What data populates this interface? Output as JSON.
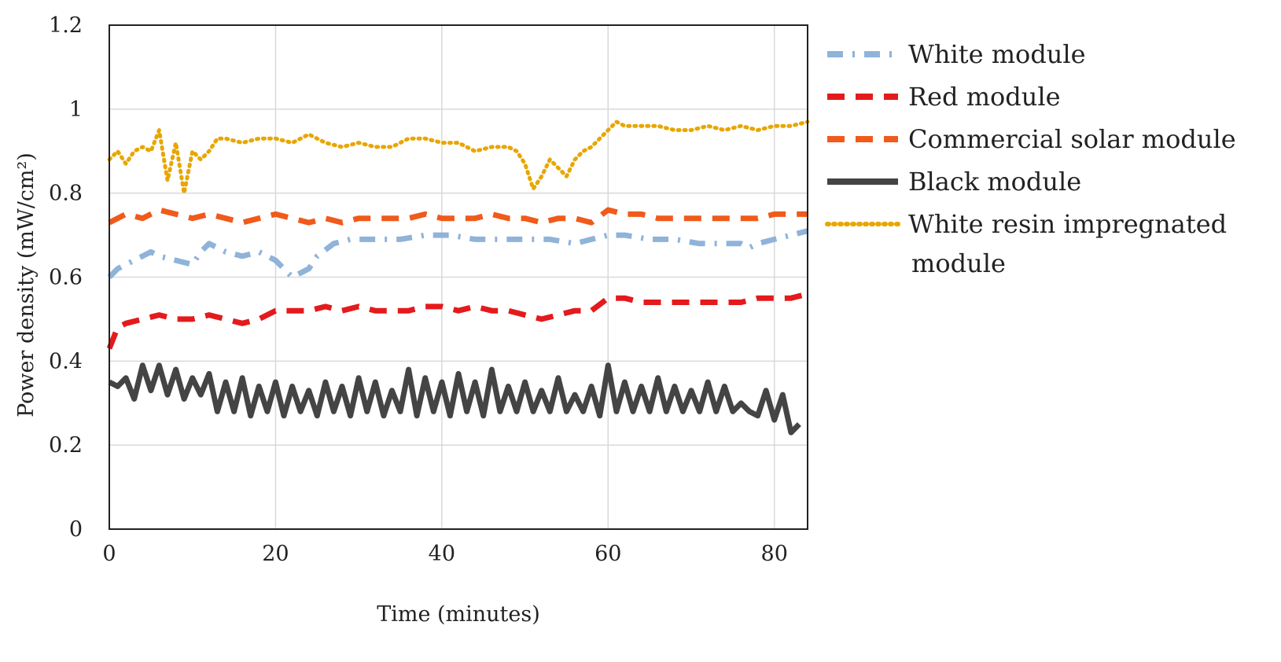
{
  "chart_data": {
    "type": "line",
    "title": "",
    "xlabel": "Time (minutes)",
    "ylabel": "Power density (mW/cm²)",
    "xlim": [
      0,
      84
    ],
    "ylim": [
      0,
      1.2
    ],
    "x_ticks": [
      0,
      20,
      40,
      60,
      80
    ],
    "y_ticks": [
      0,
      0.2,
      0.4,
      0.6,
      0.8,
      1,
      1.2
    ],
    "x_tick_labels": [
      "0",
      "20",
      "40",
      "60",
      "80"
    ],
    "y_tick_labels": [
      "0",
      "0.2",
      "0.4",
      "0.6",
      "0.8",
      "1",
      "1.2"
    ],
    "grid": true,
    "legend_position": "right",
    "series": [
      {
        "name": "White module",
        "legend_lines": [
          "White module"
        ],
        "color": "#8fb3d9",
        "style": "dash-dot",
        "x": [
          0,
          1,
          2,
          3,
          4,
          5,
          6,
          8,
          10,
          11,
          12,
          14,
          16,
          18,
          20,
          21,
          22,
          23,
          24,
          25,
          27,
          29,
          32,
          35,
          38,
          41,
          44,
          47,
          50,
          53,
          56,
          58,
          60,
          62,
          65,
          68,
          71,
          74,
          76,
          77,
          78,
          80,
          82,
          84
        ],
        "y": [
          0.6,
          0.62,
          0.63,
          0.64,
          0.65,
          0.66,
          0.65,
          0.64,
          0.63,
          0.66,
          0.68,
          0.66,
          0.65,
          0.66,
          0.64,
          0.62,
          0.6,
          0.61,
          0.62,
          0.65,
          0.68,
          0.69,
          0.69,
          0.69,
          0.7,
          0.7,
          0.69,
          0.69,
          0.69,
          0.69,
          0.68,
          0.69,
          0.7,
          0.7,
          0.69,
          0.69,
          0.68,
          0.68,
          0.68,
          0.67,
          0.68,
          0.69,
          0.7,
          0.71
        ]
      },
      {
        "name": "Red module",
        "legend_lines": [
          "Red module"
        ],
        "color": "#e41a1c",
        "style": "dashed",
        "x": [
          0,
          1,
          2,
          4,
          6,
          8,
          10,
          12,
          14,
          16,
          18,
          20,
          22,
          24,
          26,
          28,
          30,
          32,
          34,
          36,
          38,
          40,
          42,
          44,
          46,
          48,
          50,
          52,
          54,
          56,
          58,
          60,
          62,
          64,
          66,
          68,
          70,
          72,
          74,
          76,
          78,
          80,
          82,
          84
        ],
        "y": [
          0.43,
          0.48,
          0.49,
          0.5,
          0.51,
          0.5,
          0.5,
          0.51,
          0.5,
          0.49,
          0.5,
          0.52,
          0.52,
          0.52,
          0.53,
          0.52,
          0.53,
          0.52,
          0.52,
          0.52,
          0.53,
          0.53,
          0.52,
          0.53,
          0.52,
          0.52,
          0.51,
          0.5,
          0.51,
          0.52,
          0.52,
          0.55,
          0.55,
          0.54,
          0.54,
          0.54,
          0.54,
          0.54,
          0.54,
          0.54,
          0.55,
          0.55,
          0.55,
          0.56
        ]
      },
      {
        "name": "Commercial solar module",
        "legend_lines": [
          "Commercial solar module"
        ],
        "color": "#f05a1a",
        "style": "dashed",
        "x": [
          0,
          2,
          4,
          6,
          8,
          10,
          12,
          14,
          16,
          18,
          20,
          22,
          24,
          26,
          28,
          30,
          32,
          34,
          36,
          38,
          40,
          42,
          44,
          46,
          48,
          50,
          52,
          54,
          56,
          58,
          60,
          62,
          64,
          66,
          68,
          70,
          72,
          74,
          76,
          78,
          80,
          82,
          84
        ],
        "y": [
          0.73,
          0.75,
          0.74,
          0.76,
          0.75,
          0.74,
          0.75,
          0.74,
          0.73,
          0.74,
          0.75,
          0.74,
          0.73,
          0.74,
          0.73,
          0.74,
          0.74,
          0.74,
          0.74,
          0.75,
          0.74,
          0.74,
          0.74,
          0.75,
          0.74,
          0.74,
          0.73,
          0.74,
          0.74,
          0.73,
          0.76,
          0.75,
          0.75,
          0.74,
          0.74,
          0.74,
          0.74,
          0.74,
          0.74,
          0.74,
          0.75,
          0.75,
          0.75
        ]
      },
      {
        "name": "Black module",
        "legend_lines": [
          "Black module"
        ],
        "color": "#444444",
        "style": "solid",
        "x": [
          0,
          1,
          2,
          3,
          4,
          5,
          6,
          7,
          8,
          9,
          10,
          11,
          12,
          13,
          14,
          15,
          16,
          17,
          18,
          19,
          20,
          21,
          22,
          23,
          24,
          25,
          26,
          27,
          28,
          29,
          30,
          31,
          32,
          33,
          34,
          35,
          36,
          37,
          38,
          39,
          40,
          41,
          42,
          43,
          44,
          45,
          46,
          47,
          48,
          49,
          50,
          51,
          52,
          53,
          54,
          55,
          56,
          57,
          58,
          59,
          60,
          61,
          62,
          63,
          64,
          65,
          66,
          67,
          68,
          69,
          70,
          71,
          72,
          73,
          74,
          75,
          76,
          77,
          78,
          79,
          80,
          81,
          82,
          83
        ],
        "y": [
          0.35,
          0.34,
          0.36,
          0.31,
          0.39,
          0.33,
          0.39,
          0.32,
          0.38,
          0.31,
          0.36,
          0.32,
          0.37,
          0.28,
          0.35,
          0.28,
          0.36,
          0.27,
          0.34,
          0.28,
          0.35,
          0.27,
          0.34,
          0.28,
          0.33,
          0.27,
          0.35,
          0.28,
          0.34,
          0.27,
          0.36,
          0.28,
          0.35,
          0.27,
          0.33,
          0.28,
          0.38,
          0.27,
          0.36,
          0.28,
          0.35,
          0.27,
          0.37,
          0.28,
          0.35,
          0.27,
          0.38,
          0.28,
          0.34,
          0.28,
          0.35,
          0.28,
          0.33,
          0.28,
          0.36,
          0.28,
          0.32,
          0.28,
          0.34,
          0.27,
          0.39,
          0.28,
          0.35,
          0.28,
          0.34,
          0.28,
          0.36,
          0.28,
          0.34,
          0.28,
          0.33,
          0.28,
          0.35,
          0.28,
          0.34,
          0.28,
          0.3,
          0.28,
          0.27,
          0.33,
          0.26,
          0.32,
          0.23,
          0.25
        ]
      },
      {
        "name": "White resin impregnated module",
        "legend_lines": [
          "White resin impregnated",
          "module"
        ],
        "color": "#e8a600",
        "style": "dotted",
        "x": [
          0,
          1,
          2,
          3,
          4,
          5,
          6,
          7,
          8,
          9,
          10,
          11,
          12,
          13,
          14,
          16,
          18,
          20,
          22,
          24,
          26,
          28,
          30,
          32,
          34,
          36,
          38,
          40,
          42,
          44,
          46,
          48,
          49,
          50,
          51,
          52,
          53,
          54,
          55,
          56,
          57,
          58,
          59,
          60,
          61,
          62,
          64,
          66,
          68,
          70,
          72,
          74,
          76,
          78,
          80,
          82,
          84
        ],
        "y": [
          0.88,
          0.9,
          0.87,
          0.9,
          0.91,
          0.9,
          0.95,
          0.83,
          0.92,
          0.8,
          0.9,
          0.88,
          0.9,
          0.93,
          0.93,
          0.92,
          0.93,
          0.93,
          0.92,
          0.94,
          0.92,
          0.91,
          0.92,
          0.91,
          0.91,
          0.93,
          0.93,
          0.92,
          0.92,
          0.9,
          0.91,
          0.91,
          0.9,
          0.87,
          0.81,
          0.84,
          0.88,
          0.86,
          0.84,
          0.88,
          0.9,
          0.91,
          0.93,
          0.95,
          0.97,
          0.96,
          0.96,
          0.96,
          0.95,
          0.95,
          0.96,
          0.95,
          0.96,
          0.95,
          0.96,
          0.96,
          0.97
        ]
      }
    ]
  }
}
